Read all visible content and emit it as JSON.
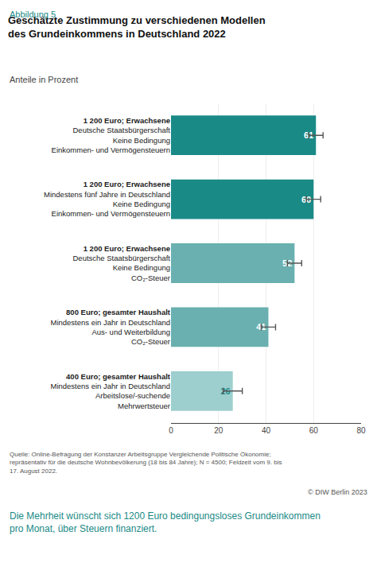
{
  "chart_data": {
    "type": "bar",
    "orientation": "horizontal",
    "title": "Geschätzte Zustimmung zu verschiedenen Modellen\ndes Grundeinkommens in Deutschland 2022",
    "subtitle": "Anteile in Prozent",
    "categories": [
      "1 200 Euro; Erwachsene\nDeutsche Staatsbürgerschaft\nKeine Bedingung\nEinkommen- und Vermögensteuern",
      "1 200 Euro; Erwachsene\nMindestens fünf Jahre in Deutschland\nKeine Bedingung\nEinkommen- und Vermögensteuern",
      "1 200 Euro; Erwachsene\nDeutsche Staatsbürgerschaft\nKeine Bedingung\nCO₂-Steuer",
      "800 Euro; gesamter Haushalt\nMindestens ein Jahr in Deutschland\nAus- und Weiterbildung\nCO₂-Steuer",
      "400 Euro; gesamter Haushalt\nMindestens ein Jahr in Deutschland\nArbeitslose/-suchende\nMehrwertsteuer"
    ],
    "values": [
      61,
      60,
      52,
      41,
      26
    ],
    "errors": [
      3,
      3,
      3,
      3,
      4
    ],
    "colors": [
      "#1a8a87",
      "#1a8a87",
      "#6ab0b0",
      "#6ab0b0",
      "#9dcfcf"
    ],
    "xlim": [
      0,
      80
    ],
    "xticks": [
      0,
      20,
      40,
      60,
      80
    ],
    "grid": true,
    "data_labels": true,
    "annotations": [
      "Abbildung 5",
      "Quelle: Online-Befragung der Konstanzer Arbeitsgruppe Vergleichende Politische Ökonomie;\nrepräsentativ für die deutsche Wohnbevölkerung (18 bis 84 Jahre); N = 4500; Feldzeit vom 9. bis\n17. August 2022.",
      "© DIW Berlin 2023",
      "Die Mehrheit wünscht sich 1200 Euro bedingungsloses Grundeinkommen pro Monat, über Steuern finanziert."
    ]
  }
}
